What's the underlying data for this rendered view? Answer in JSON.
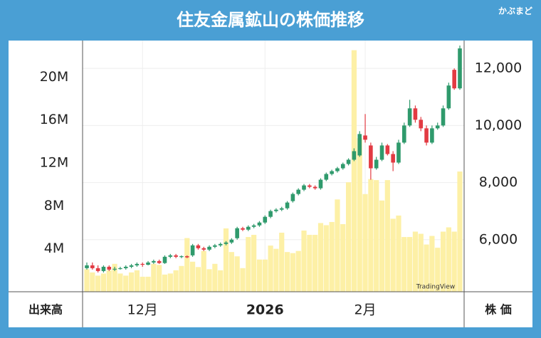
{
  "chart_data": {
    "type": "candlestick",
    "title": "住友金属鉱山の株価推移",
    "brand": "かぶまど",
    "watermark": "TradingView",
    "y_label": "出来高",
    "y2_label": "株 価",
    "xticks": [
      {
        "value": 10,
        "label": "12月"
      },
      {
        "value": 32,
        "label": "2026"
      },
      {
        "value": 50,
        "label": "2月"
      }
    ],
    "ylim": [
      0,
      23400000
    ],
    "yticks": [
      {
        "value": 4000000,
        "label": "4M"
      },
      {
        "value": 8000000,
        "label": "8M"
      },
      {
        "value": 12000000,
        "label": "12M"
      },
      {
        "value": 16000000,
        "label": "16M"
      },
      {
        "value": 20000000,
        "label": "20M"
      }
    ],
    "y2lim": [
      4175,
      12975
    ],
    "y2ticks": [
      {
        "value": 6000,
        "label": "6,000"
      },
      {
        "value": 8000,
        "label": "8,000"
      },
      {
        "value": 10000,
        "label": "10,000"
      },
      {
        "value": 12000,
        "label": "12,000"
      }
    ],
    "volume": {
      "color": "#fdf0a6",
      "values": [
        2100000,
        1800000,
        1500000,
        1700000,
        2000000,
        2600000,
        1700000,
        1500000,
        1800000,
        2000000,
        1400000,
        1400000,
        2600000,
        2500000,
        1600000,
        1700000,
        2000000,
        2400000,
        5000000,
        2800000,
        2300000,
        3800000,
        2100000,
        2600000,
        2000000,
        5900000,
        3700000,
        3300000,
        2200000,
        5100000,
        5300000,
        3000000,
        3000000,
        4300000,
        4000000,
        5500000,
        3700000,
        3600000,
        3800000,
        5700000,
        5300000,
        5300000,
        6400000,
        6200000,
        6500000,
        8600000,
        6300000,
        10200000,
        22500000,
        14300000,
        9100000,
        10500000,
        10400000,
        8500000,
        10400000,
        6800000,
        7100000,
        5100000,
        5100000,
        5600000,
        5400000,
        4400000,
        5200000,
        4100000,
        5600000,
        6000000,
        5600000,
        11200000
      ]
    },
    "ohlc": {
      "axis": "y2",
      "up_color": "#2f9a6c",
      "down_color": "#e23b43",
      "open": [
        5000,
        5100,
        5000,
        4900,
        5050,
        4950,
        4980,
        5000,
        5050,
        5100,
        5150,
        5120,
        5200,
        5250,
        5180,
        5400,
        5450,
        5400,
        5420,
        5450,
        5800,
        5700,
        5650,
        5750,
        5800,
        5850,
        5900,
        6050,
        6400,
        6350,
        6450,
        6500,
        6600,
        6800,
        7000,
        7050,
        7100,
        7350,
        7600,
        7750,
        7900,
        7850,
        7800,
        8100,
        8300,
        8400,
        8500,
        8650,
        8800,
        8950,
        9650,
        9300,
        8500,
        8800,
        9300,
        9000,
        8700,
        9400,
        10000,
        10600,
        10200,
        9900,
        9400,
        9900,
        10000,
        10600,
        11950,
        11300
      ],
      "high": [
        5200,
        5200,
        5100,
        5100,
        5100,
        5050,
        5050,
        5100,
        5150,
        5200,
        5200,
        5250,
        5300,
        5300,
        5450,
        5500,
        5500,
        5450,
        5450,
        5850,
        5850,
        5750,
        5800,
        5850,
        5900,
        5950,
        6050,
        6450,
        6450,
        6500,
        6550,
        6650,
        6850,
        7050,
        7100,
        7150,
        7350,
        7650,
        7800,
        7950,
        7950,
        7900,
        8150,
        8350,
        8450,
        8550,
        8700,
        8850,
        9200,
        9800,
        10400,
        9400,
        8900,
        9400,
        9350,
        9100,
        9500,
        10100,
        10900,
        10700,
        10300,
        10000,
        10000,
        10100,
        10700,
        11500,
        12000,
        12800
      ],
      "low": [
        4950,
        4950,
        4850,
        4850,
        4900,
        4900,
        4950,
        4950,
        5000,
        5050,
        5050,
        5100,
        5150,
        5150,
        5150,
        5350,
        5350,
        5350,
        5350,
        5400,
        5650,
        5600,
        5600,
        5700,
        5750,
        5800,
        5850,
        6000,
        6300,
        6300,
        6400,
        6450,
        6550,
        6750,
        6950,
        7000,
        7050,
        7300,
        7550,
        7700,
        7800,
        7750,
        7750,
        8050,
        8250,
        8350,
        8450,
        8600,
        8750,
        8900,
        9400,
        8100,
        8450,
        8750,
        8950,
        8400,
        8650,
        9350,
        9950,
        10100,
        9800,
        9300,
        9350,
        9850,
        9950,
        10550,
        11250,
        11250
      ],
      "close": [
        5100,
        5000,
        4900,
        5050,
        4950,
        4980,
        5000,
        5050,
        5100,
        5150,
        5120,
        5200,
        5250,
        5180,
        5400,
        5450,
        5400,
        5420,
        5380,
        5800,
        5700,
        5650,
        5750,
        5800,
        5850,
        5900,
        6000,
        6400,
        6350,
        6450,
        6500,
        6600,
        6800,
        7000,
        7050,
        7100,
        7300,
        7600,
        7750,
        7900,
        7850,
        7800,
        8100,
        8300,
        8400,
        8500,
        8650,
        8800,
        9100,
        9700,
        9500,
        8500,
        8800,
        9300,
        9000,
        8700,
        9400,
        10000,
        10600,
        10200,
        9900,
        9400,
        9900,
        10000,
        10600,
        11400,
        11300,
        12700
      ]
    }
  }
}
